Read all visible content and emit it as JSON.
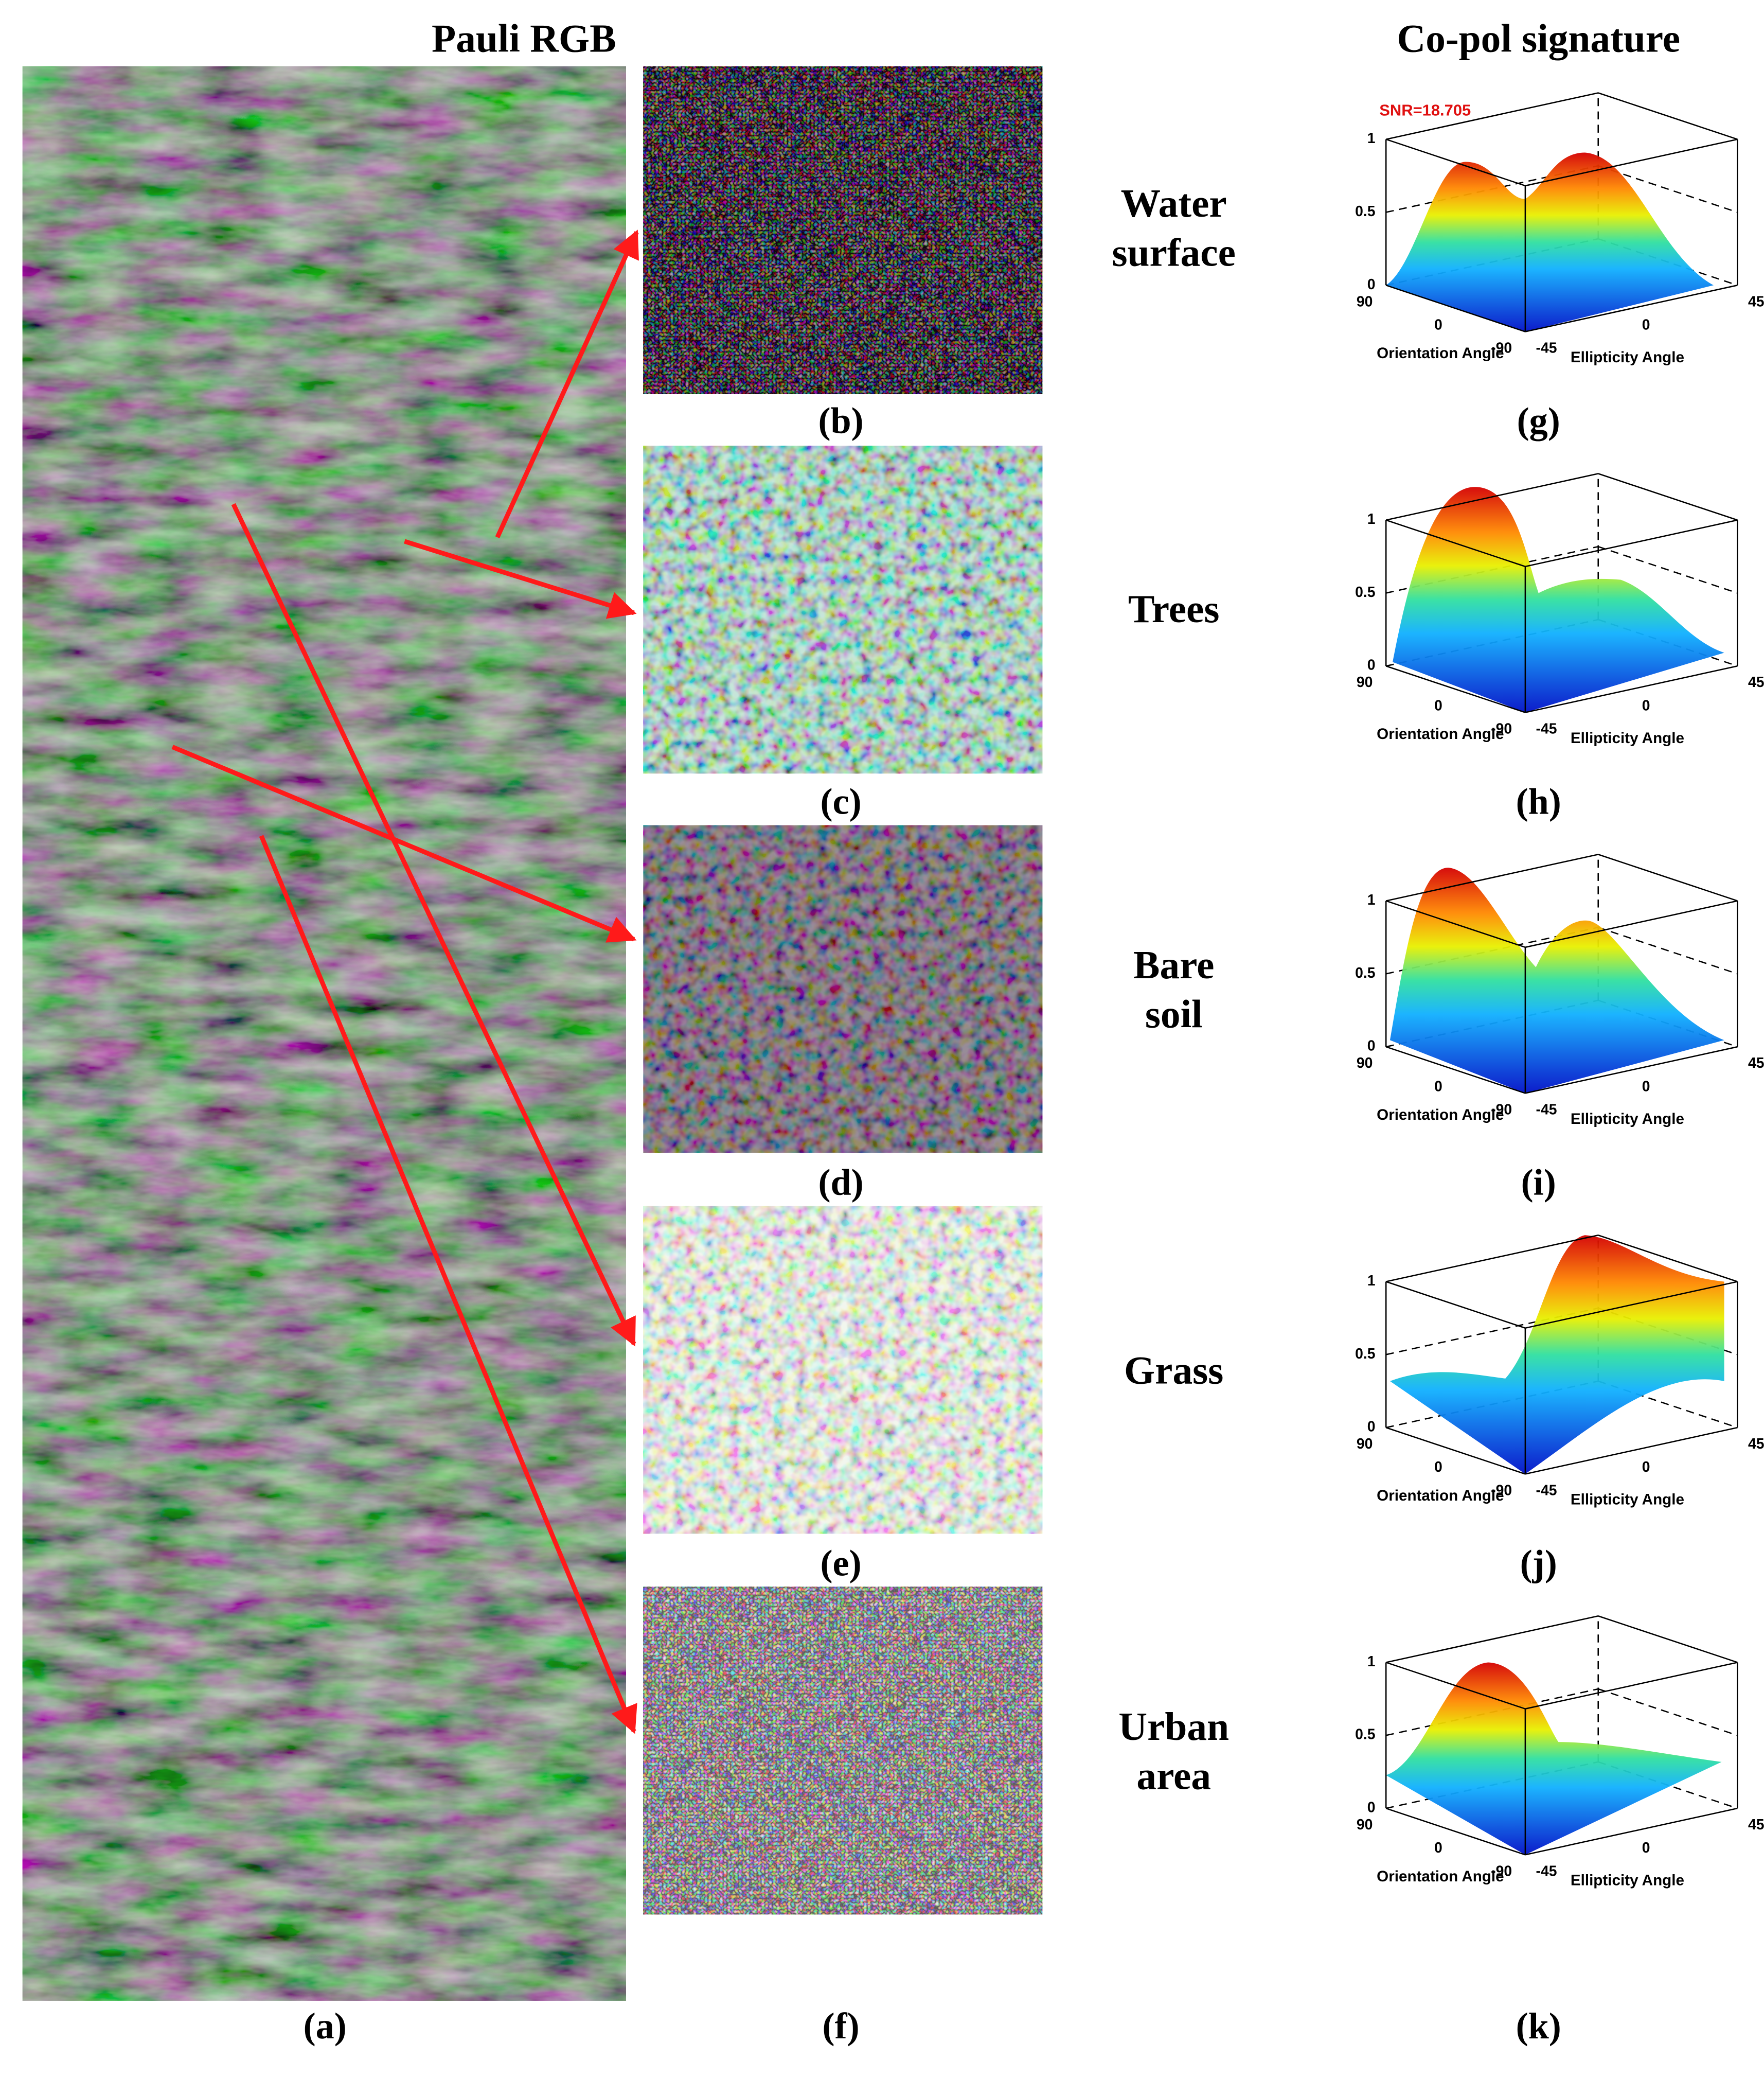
{
  "left_panel": {
    "title": "Pauli RGB",
    "label": "(a)"
  },
  "patches": [
    {
      "class_lines": [
        "Water",
        "surface"
      ],
      "label": "(b)"
    },
    {
      "class_lines": [
        "Trees"
      ],
      "label": "(c)"
    },
    {
      "class_lines": [
        "Bare",
        "soil"
      ],
      "label": "(d)"
    },
    {
      "class_lines": [
        "Grass"
      ],
      "label": "(e)"
    },
    {
      "class_lines": [
        "Urban",
        "area"
      ],
      "label": "(f)"
    }
  ],
  "signatures": {
    "title": "Co-pol signature",
    "annotation": "SNR=18.705",
    "z_ticks": [
      0,
      0.5,
      1
    ],
    "orientation_ticks": [
      90,
      0,
      -90
    ],
    "ellipticity_ticks": [
      -45,
      0,
      45
    ],
    "orientation_label": "Orientation Angle",
    "ellipticity_label": "Ellipticity Angle",
    "panels": [
      "(g)",
      "(h)",
      "(i)",
      "(j)",
      "(k)"
    ]
  }
}
